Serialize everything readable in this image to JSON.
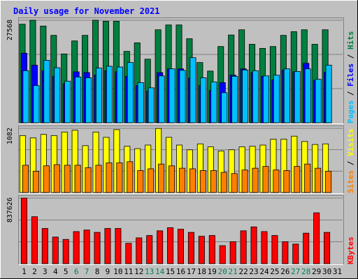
{
  "chart_data": {
    "type": "bar",
    "title": "Daily usage for November 2021",
    "days": [
      "1",
      "2",
      "3",
      "4",
      "5",
      "6",
      "7",
      "8",
      "9",
      "10",
      "11",
      "12",
      "13",
      "14",
      "15",
      "16",
      "17",
      "18",
      "19",
      "20",
      "21",
      "22",
      "23",
      "24",
      "25",
      "26",
      "27",
      "28",
      "29",
      "30",
      "31"
    ],
    "weekend_days": [
      "6",
      "7",
      "13",
      "14",
      "20",
      "21",
      "27",
      "28"
    ],
    "panels": [
      {
        "id": "hits_files_pages",
        "ymax": 27568,
        "ymax_label": "27568",
        "axis_label": [
          "Pages",
          "Files",
          "Hits"
        ],
        "series": [
          {
            "name": "Hits",
            "color": "#008040",
            "values": [
              26500,
              27600,
              26000,
              23500,
              18500,
              22000,
              23500,
              27800,
              27300,
              27300,
              19200,
              21500,
              17100,
              25000,
              26300,
              26300,
              22600,
              16200,
              13900,
              20500,
              23600,
              25000,
              21100,
              20000,
              20500,
              23500,
              24500,
              25000,
              21100,
              25000,
              null
            ]
          },
          {
            "name": "Files",
            "color": "#0000ff",
            "values": [
              18700,
              15500,
              14000,
              12500,
              10500,
              13700,
              13500,
              12800,
              14000,
              13700,
              12500,
              10000,
              8500,
              13500,
              14500,
              14500,
              12000,
              10000,
              8700,
              10800,
              12800,
              14500,
              13500,
              12500,
              11500,
              14200,
              13700,
              16000,
              11400,
              13600,
              null
            ]
          },
          {
            "name": "Pages",
            "color": "#00c0ff",
            "values": [
              14000,
              10000,
              16800,
              14800,
              11200,
              12300,
              12100,
              14700,
              15200,
              15000,
              16200,
              10800,
              9400,
              12600,
              14500,
              14100,
              17500,
              12100,
              11000,
              8100,
              12500,
              14200,
              14000,
              12600,
              12800,
              14500,
              13800,
              14500,
              11700,
              15500,
              null
            ]
          }
        ]
      },
      {
        "id": "visits_sites",
        "ymax": 1082,
        "ymax_label": "1082",
        "axis_label": [
          "Sites",
          "Visits"
        ],
        "series": [
          {
            "name": "Visits",
            "color": "#ffff00",
            "values": [
              960,
              920,
              980,
              960,
              1020,
              1050,
              790,
              1020,
              930,
              1060,
              780,
              740,
              800,
              1080,
              930,
              800,
              720,
              820,
              770,
              700,
              720,
              770,
              780,
              800,
              900,
              900,
              950,
              860,
              810,
              820,
              null
            ]
          },
          {
            "name": "Sites",
            "color": "#ff8000",
            "values": [
              460,
              360,
              450,
              470,
              460,
              460,
              420,
              460,
              500,
              500,
              520,
              370,
              400,
              480,
              450,
              410,
              400,
              370,
              370,
              340,
              320,
              380,
              410,
              440,
              380,
              370,
              440,
              480,
              410,
              360,
              null
            ]
          }
        ]
      },
      {
        "id": "kbytes",
        "ymax": 837626,
        "ymax_label": "837626",
        "axis_label": [
          "KBytes"
        ],
        "series": [
          {
            "name": "KBytes",
            "color": "#ff0000",
            "values": [
              837626,
              600000,
              450000,
              340000,
              310000,
              410000,
              430000,
              400000,
              450000,
              450000,
              260000,
              330000,
              360000,
              420000,
              460000,
              440000,
              400000,
              350000,
              360000,
              230000,
              280000,
              420000,
              470000,
              410000,
              360000,
              280000,
              250000,
              390000,
              650000,
              400000,
              null
            ]
          }
        ]
      }
    ]
  },
  "style": {
    "background": "#c0c0c0",
    "plot_background": "#c0c0c0",
    "title_color": "#0000ff",
    "weekday_label_color": "#000000",
    "weekend_label_color": "#00805c",
    "bar_outline": "#000000"
  }
}
